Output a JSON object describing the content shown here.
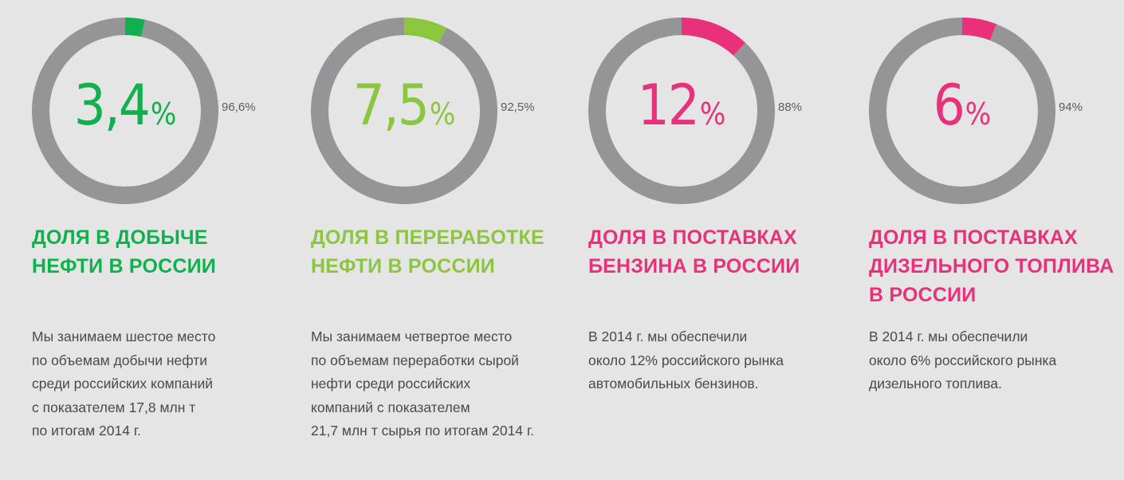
{
  "chart_data": [
    {
      "type": "pie",
      "labels": [
        "3,4%",
        "96,6%"
      ],
      "values": [
        3.4,
        96.6
      ],
      "colors": [
        "#10b04e",
        "#959597"
      ],
      "center_label": "3,4",
      "title": "ДОЛЯ В ДОБЫЧЕ НЕФТИ В РОССИИ"
    },
    {
      "type": "pie",
      "labels": [
        "7,5%",
        "92,5%"
      ],
      "values": [
        7.5,
        92.5
      ],
      "colors": [
        "#8cc63f",
        "#959597"
      ],
      "center_label": "7,5",
      "title": "ДОЛЯ В ПЕРЕРАБОТКЕ НЕФТИ В РОССИИ"
    },
    {
      "type": "pie",
      "labels": [
        "12%",
        "88%"
      ],
      "values": [
        12,
        88
      ],
      "colors": [
        "#e8317a",
        "#959597"
      ],
      "center_label": "12",
      "title": "ДОЛЯ В ПОСТАВКАХ БЕНЗИНА В РОССИИ"
    },
    {
      "type": "pie",
      "labels": [
        "6%",
        "94%"
      ],
      "values": [
        6,
        94
      ],
      "colors": [
        "#e8317a",
        "#959597"
      ],
      "center_label": "6",
      "title": "ДОЛЯ В ПОСТАВКАХ ДИЗЕЛЬНОГО ТОПЛИВА В РОССИИ"
    }
  ],
  "columns": [
    {
      "big": "3,4",
      "pct": "%",
      "rest": "96,6%",
      "heading": [
        "ДОЛЯ В ДОБЫЧЕ",
        "НЕФТИ В РОССИИ"
      ],
      "body": [
        "Мы занимаем шестое место",
        "по объемам добычи нефти",
        "среди российских компаний",
        "с показателем 17,8 млн т",
        "по итогам 2014 г."
      ],
      "color": "#10b04e"
    },
    {
      "big": "7,5",
      "pct": "%",
      "rest": "92,5%",
      "heading": [
        "ДОЛЯ В ПЕРЕРАБОТКЕ",
        "НЕФТИ В РОССИИ"
      ],
      "body": [
        "Мы занимаем четвертое место",
        "по объемам переработки сырой",
        "нефти среди российских",
        "компаний с показателем",
        "21,7 млн т сырья по итогам 2014 г."
      ],
      "color": "#8cc63f"
    },
    {
      "big": "12",
      "pct": "%",
      "rest": "88%",
      "heading": [
        "ДОЛЯ В ПОСТАВКАХ",
        "БЕНЗИНА В РОССИИ"
      ],
      "body": [
        "В 2014 г. мы обеспечили",
        "около 12% российского рынка",
        "автомобильных бензинов."
      ],
      "color": "#e8317a"
    },
    {
      "big": "6",
      "pct": "%",
      "rest": "94%",
      "heading": [
        "ДОЛЯ В ПОСТАВКАХ",
        "ДИЗЕЛЬНОГО ТОПЛИВА",
        "В РОССИИ"
      ],
      "body": [
        "В 2014 г. мы обеспечили",
        "около 6% российского рынка",
        "дизельного топлива."
      ],
      "color": "#e8317a"
    }
  ]
}
